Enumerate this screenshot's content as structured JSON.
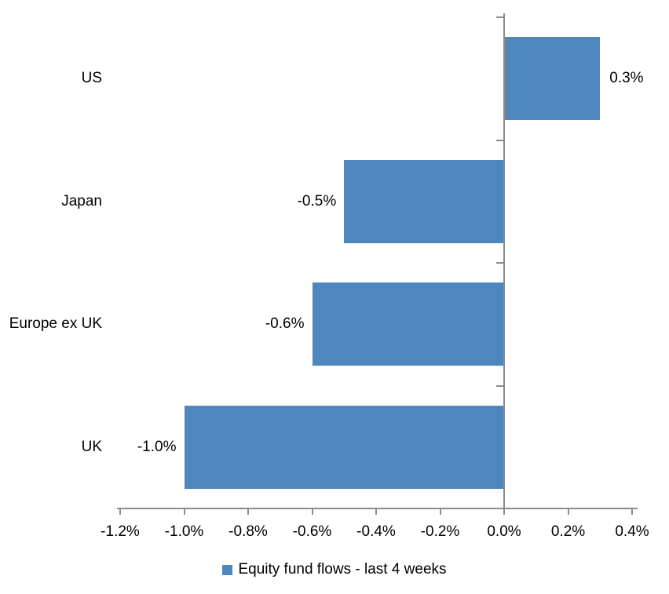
{
  "chart_data": {
    "type": "bar",
    "orientation": "horizontal",
    "title": "",
    "xlabel": "",
    "ylabel": "",
    "categories": [
      "US",
      "Japan",
      "Europe ex UK",
      "UK"
    ],
    "values": [
      0.3,
      -0.5,
      -0.6,
      -1.0
    ],
    "data_labels": [
      "0.3%",
      "-0.5%",
      "-0.6%",
      "-1.0%"
    ],
    "xlim": [
      -1.2,
      0.4
    ],
    "x_ticks": [
      -1.2,
      -1.0,
      -0.8,
      -0.6,
      -0.4,
      -0.2,
      0.0,
      0.2,
      0.4
    ],
    "x_tick_labels": [
      "-1.2%",
      "-1.0%",
      "-0.8%",
      "-0.6%",
      "-0.4%",
      "-0.2%",
      "0.0%",
      "0.2%",
      "0.4%"
    ],
    "grid": false,
    "legend_position": "bottom",
    "legend": [
      "Equity fund flows - last 4 weeks"
    ],
    "bar_color": "#4E87BD",
    "axis_color": "#8C8C8C",
    "text_color": "#000000"
  }
}
